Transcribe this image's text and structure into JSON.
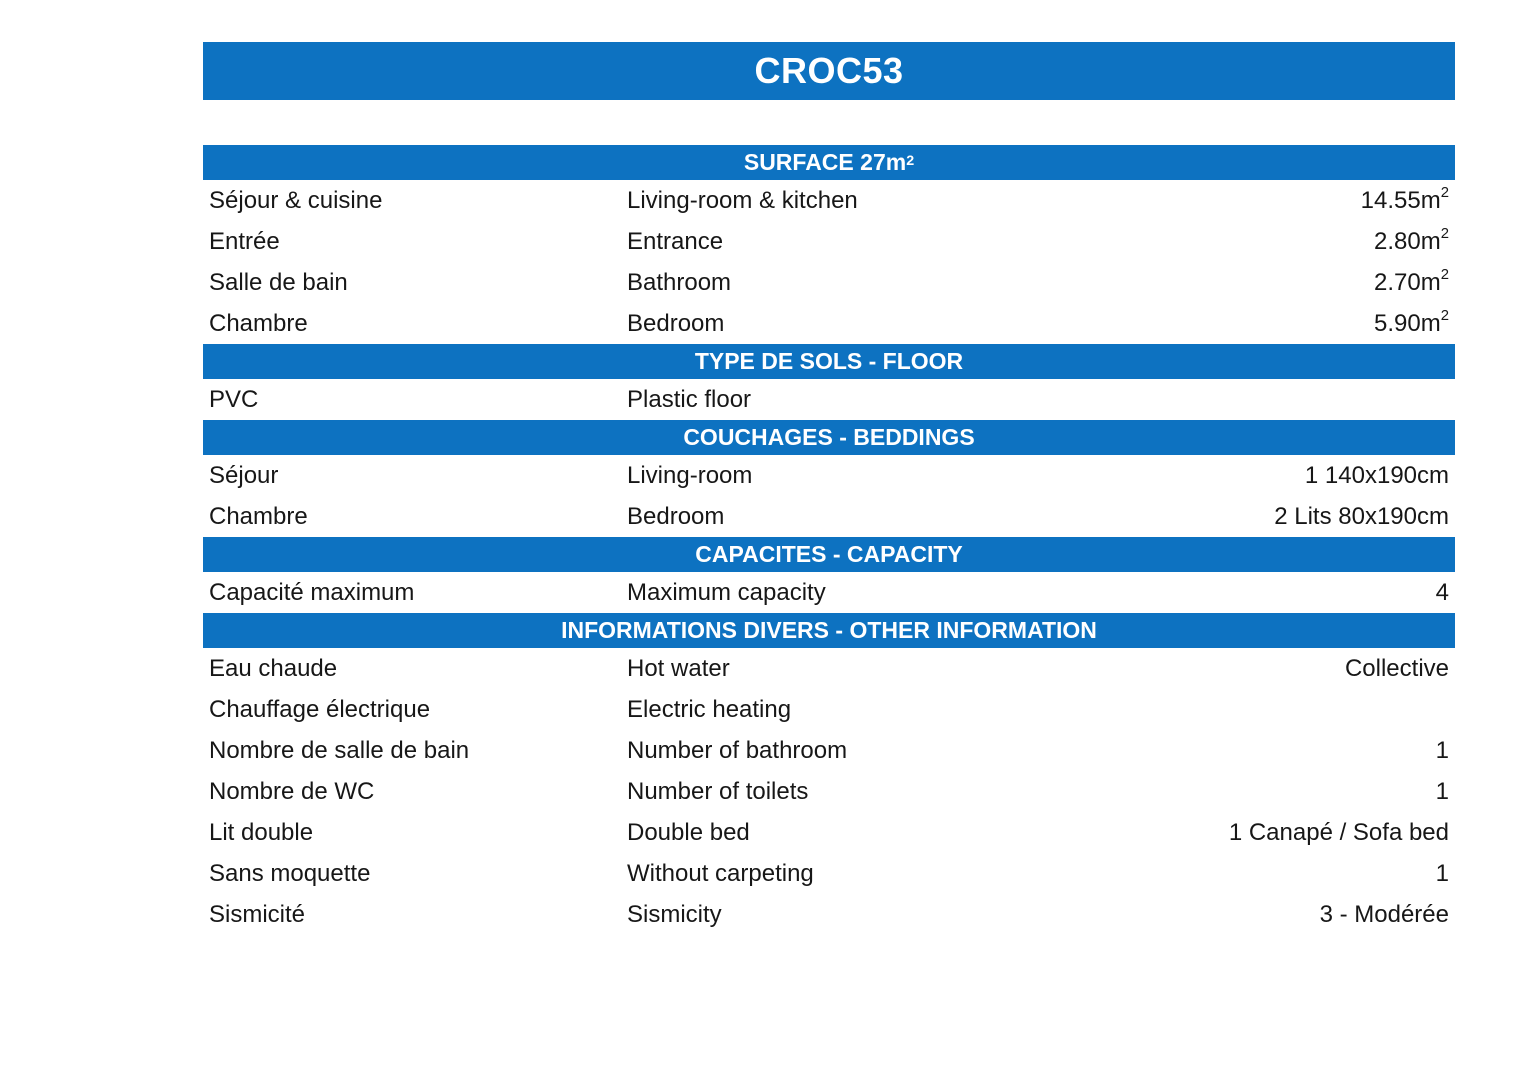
{
  "title": "CROC53",
  "colors": {
    "band": "#0d72c1",
    "band_text": "#ffffff",
    "text": "#171717"
  },
  "sections": [
    {
      "header": "SURFACE 27m",
      "header_sup": "2",
      "rows": [
        {
          "fr": "Séjour & cuisine",
          "en": "Living-room & kitchen",
          "value": "14.55m",
          "value_sup": "2"
        },
        {
          "fr": "Entrée",
          "en": "Entrance",
          "value": "2.80m",
          "value_sup": "2"
        },
        {
          "fr": "Salle de bain",
          "en": "Bathroom",
          "value": "2.70m",
          "value_sup": "2"
        },
        {
          "fr": "Chambre",
          "en": "Bedroom",
          "value": "5.90m",
          "value_sup": "2"
        }
      ]
    },
    {
      "header": "TYPE DE SOLS - FLOOR",
      "rows": [
        {
          "fr": "PVC",
          "en": "Plastic floor",
          "value": ""
        }
      ]
    },
    {
      "header": "COUCHAGES - BEDDINGS",
      "rows": [
        {
          "fr": "Séjour",
          "en": "Living-room",
          "value": "1 140x190cm"
        },
        {
          "fr": "Chambre",
          "en": "Bedroom",
          "value": "2 Lits 80x190cm"
        }
      ]
    },
    {
      "header": "CAPACITES - CAPACITY",
      "rows": [
        {
          "fr": "Capacité maximum",
          "en": "Maximum capacity",
          "value": "4"
        }
      ]
    },
    {
      "header": "INFORMATIONS DIVERS - OTHER INFORMATION",
      "rows": [
        {
          "fr": "Eau chaude",
          "en": "Hot water",
          "value": "Collective"
        },
        {
          "fr": "Chauffage électrique",
          "en": "Electric heating",
          "value": ""
        },
        {
          "fr": "Nombre de salle de bain",
          "en": "Number of bathroom",
          "value": "1"
        },
        {
          "fr": "Nombre de WC",
          "en": "Number of toilets",
          "value": "1"
        },
        {
          "fr": "Lit double",
          "en": "Double bed",
          "value": "1 Canapé / Sofa bed"
        },
        {
          "fr": "Sans moquette",
          "en": "Without carpeting",
          "value": "1"
        },
        {
          "fr": "Sismicité",
          "en": "Sismicity",
          "value": "3 - Modérée"
        }
      ]
    }
  ]
}
